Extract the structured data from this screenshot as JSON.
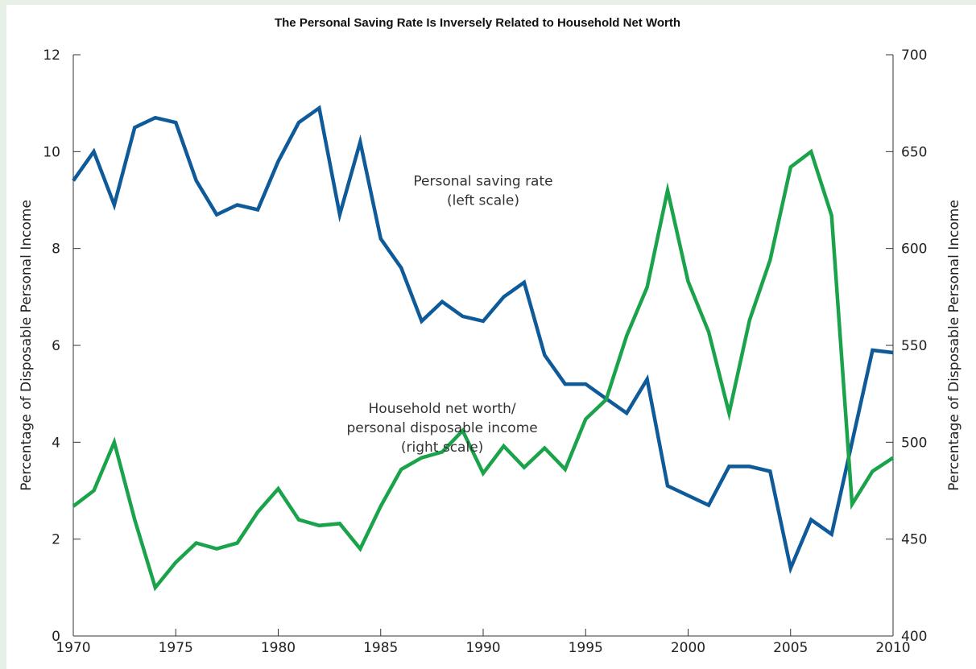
{
  "chart_data": {
    "type": "line",
    "title": "The Personal Saving Rate Is Inversely Related to Household Net Worth",
    "ylabel_left": "Percentage of Disposable Personal Income",
    "ylabel_right": "Percentage of Disposable Personal Income",
    "xlim": [
      1970,
      2010
    ],
    "ylim_left": [
      0,
      12
    ],
    "ylim_right": [
      400,
      700
    ],
    "x_ticks": [
      1970,
      1975,
      1980,
      1985,
      1990,
      1995,
      2000,
      2005,
      2010
    ],
    "y_ticks_left": [
      0,
      2,
      4,
      6,
      8,
      10,
      12
    ],
    "y_ticks_right": [
      400,
      450,
      500,
      550,
      600,
      650,
      700
    ],
    "grid": false,
    "legend": "none",
    "x": [
      1970,
      1971,
      1972,
      1973,
      1974,
      1975,
      1976,
      1977,
      1978,
      1979,
      1980,
      1981,
      1982,
      1983,
      1984,
      1985,
      1986,
      1987,
      1988,
      1989,
      1990,
      1991,
      1992,
      1993,
      1994,
      1995,
      1996,
      1997,
      1998,
      1999,
      2000,
      2001,
      2002,
      2003,
      2004,
      2005,
      2006,
      2007,
      2008,
      2009,
      2010
    ],
    "series": [
      {
        "axis": "left",
        "color": "#0f5b9a",
        "values": [
          9.4,
          10.0,
          8.9,
          10.5,
          10.7,
          10.6,
          9.4,
          8.7,
          8.9,
          8.8,
          9.8,
          10.6,
          10.9,
          8.7,
          10.2,
          8.2,
          7.6,
          6.5,
          6.9,
          6.6,
          6.5,
          7.0,
          7.3,
          5.8,
          5.2,
          5.2,
          4.9,
          4.6,
          5.3,
          3.1,
          2.9,
          2.7,
          3.5,
          3.5,
          3.4,
          1.4,
          2.4,
          2.1,
          4.0,
          5.9,
          5.85
        ]
      },
      {
        "axis": "right",
        "color": "#1aa34a",
        "values": [
          467,
          475,
          500,
          460,
          425,
          438,
          448,
          445,
          448,
          464,
          476,
          460,
          457,
          458,
          445,
          467,
          486,
          492,
          495,
          506,
          484,
          498,
          487,
          497,
          486,
          512,
          522,
          555,
          580,
          630,
          583,
          557,
          515,
          563,
          594,
          642,
          650,
          617,
          468,
          485,
          492
        ]
      }
    ],
    "annotations": [
      {
        "lines": [
          "Personal saving rate",
          "(left scale)"
        ],
        "x": 1990,
        "y_left": 9.3
      },
      {
        "lines": [
          "Household net worth/",
          "personal disposable income",
          "(right scale)"
        ],
        "x": 1988,
        "y_left": 4.6
      }
    ]
  }
}
